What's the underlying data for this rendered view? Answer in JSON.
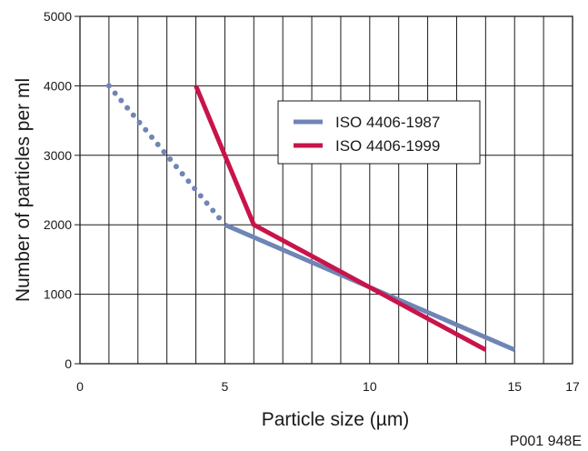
{
  "chart_data": {
    "type": "line",
    "title": "",
    "xlabel": "Particle size  (µm)",
    "ylabel": "Number of particles per ml",
    "xlim": [
      0,
      17
    ],
    "ylim": [
      0,
      5000
    ],
    "x_ticks": [
      "0",
      "5",
      "10",
      "15",
      "17"
    ],
    "y_ticks": [
      "0",
      "1000",
      "2000",
      "3000",
      "4000",
      "5000"
    ],
    "grid": true,
    "legend_position": "top-right",
    "series": [
      {
        "name": "ISO 4406-1987",
        "color": "#6f85b5",
        "segments": [
          {
            "style": "dotted",
            "points": [
              [
                1,
                4000
              ],
              [
                5,
                2000
              ]
            ]
          },
          {
            "style": "solid",
            "points": [
              [
                5,
                2000
              ],
              [
                15,
                200
              ]
            ]
          }
        ]
      },
      {
        "name": "ISO 4406-1999",
        "color": "#c8144a",
        "segments": [
          {
            "style": "solid",
            "points": [
              [
                4,
                4000
              ],
              [
                6,
                2000
              ],
              [
                14,
                200
              ]
            ]
          }
        ]
      }
    ]
  },
  "figure_id": "P001 948E"
}
